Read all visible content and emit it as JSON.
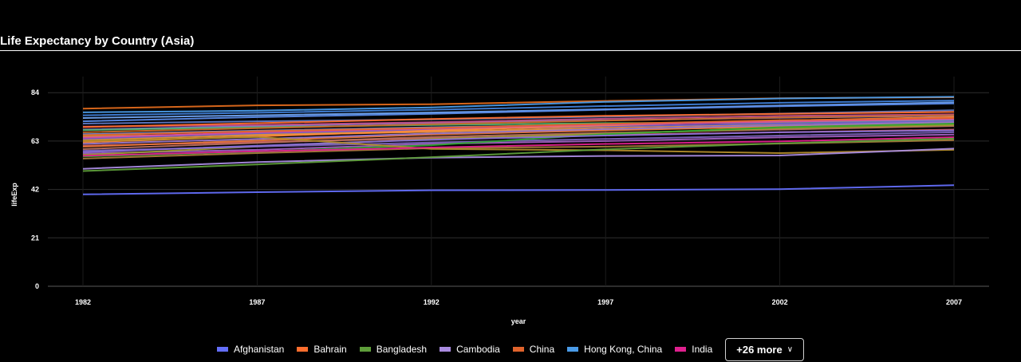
{
  "chart_data": {
    "type": "line",
    "title": "Life Expectancy by Country (Asia)",
    "xlabel": "year",
    "ylabel": "lifeExp",
    "x": [
      1982,
      1987,
      1992,
      1997,
      2002,
      2007
    ],
    "x_ticks": [
      "1982",
      "1987",
      "1992",
      "1997",
      "2002",
      "2007"
    ],
    "y_ticks": [
      "0",
      "21",
      "42",
      "63",
      "84"
    ],
    "ylim": [
      0,
      91
    ],
    "grid": true,
    "legend_position": "bottom",
    "legend_more_label": "+26 more",
    "series": [
      {
        "name": "Afghanistan",
        "color": "#636efa",
        "values": [
          39.85,
          40.82,
          41.67,
          41.76,
          42.13,
          43.83
        ]
      },
      {
        "name": "Bahrain",
        "color": "#ff6e2e",
        "values": [
          69.05,
          70.75,
          72.6,
          73.93,
          74.8,
          75.64
        ]
      },
      {
        "name": "Bangladesh",
        "color": "#5e9e3a",
        "values": [
          50.01,
          52.82,
          56.02,
          59.41,
          62.01,
          64.06
        ]
      },
      {
        "name": "Cambodia",
        "color": "#a98be0",
        "values": [
          50.96,
          53.91,
          55.8,
          56.53,
          56.75,
          59.72
        ]
      },
      {
        "name": "China",
        "color": "#e0632c",
        "values": [
          65.53,
          67.27,
          68.69,
          70.43,
          72.03,
          72.96
        ]
      },
      {
        "name": "Hong Kong, China",
        "color": "#4a9be8",
        "values": [
          75.45,
          76.2,
          77.6,
          80.0,
          81.5,
          82.21
        ]
      },
      {
        "name": "India",
        "color": "#e0208e",
        "values": [
          56.6,
          58.55,
          60.22,
          61.77,
          62.88,
          64.7
        ]
      },
      {
        "name": "",
        "color": "#e06a1c",
        "values": [
          77.1,
          78.5,
          79.0,
          80.4,
          81.6,
          82.0
        ]
      },
      {
        "name": "",
        "color": "#3f7fd8",
        "values": [
          74.2,
          75.3,
          76.6,
          78.2,
          79.6,
          80.6
        ]
      },
      {
        "name": "",
        "color": "#5a8ae6",
        "values": [
          71.6,
          73.4,
          74.8,
          76.6,
          78.1,
          79.3
        ]
      },
      {
        "name": "",
        "color": "#6fa3f0",
        "values": [
          73.0,
          74.2,
          75.4,
          76.8,
          78.4,
          79.8
        ]
      },
      {
        "name": "",
        "color": "#c86a2a",
        "values": [
          66.8,
          68.6,
          70.3,
          71.9,
          73.2,
          74.2
        ]
      },
      {
        "name": "",
        "color": "#d94fa0",
        "values": [
          64.5,
          66.8,
          68.4,
          70.1,
          71.4,
          72.6
        ]
      },
      {
        "name": "",
        "color": "#b08a2a",
        "values": [
          63.0,
          64.8,
          59.6,
          59.0,
          57.8,
          59.2
        ]
      },
      {
        "name": "",
        "color": "#8a6fd8",
        "values": [
          58.2,
          61.0,
          63.6,
          65.4,
          66.8,
          67.6
        ]
      },
      {
        "name": "",
        "color": "#2fa52f",
        "values": [
          56.3,
          58.4,
          61.2,
          66.0,
          69.0,
          70.6
        ]
      },
      {
        "name": "",
        "color": "#9a78c8",
        "values": [
          61.8,
          63.9,
          66.3,
          68.2,
          69.8,
          71.2
        ]
      },
      {
        "name": "",
        "color": "#e8773a",
        "values": [
          60.6,
          63.2,
          65.8,
          67.6,
          69.3,
          70.9
        ]
      },
      {
        "name": "",
        "color": "#7a62b8",
        "values": [
          58.8,
          60.6,
          62.4,
          63.9,
          65.4,
          66.8
        ]
      },
      {
        "name": "",
        "color": "#a67a3a",
        "values": [
          55.4,
          57.8,
          59.9,
          60.6,
          61.9,
          63.4
        ]
      },
      {
        "name": "",
        "color": "#7b8fd0",
        "values": [
          66.0,
          67.5,
          69.0,
          70.2,
          71.5,
          72.3
        ]
      },
      {
        "name": "",
        "color": "#c04f88",
        "values": [
          69.3,
          70.0,
          71.2,
          72.7,
          73.9,
          74.6
        ]
      },
      {
        "name": "",
        "color": "#ff8a3a",
        "values": [
          62.5,
          65.0,
          67.6,
          69.8,
          71.9,
          73.4
        ]
      },
      {
        "name": "",
        "color": "#9a9a30",
        "values": [
          57.0,
          60.6,
          63.9,
          66.2,
          68.5,
          70.0
        ]
      },
      {
        "name": "",
        "color": "#6e5ec8",
        "values": [
          64.0,
          66.4,
          68.0,
          69.4,
          70.6,
          71.6
        ]
      },
      {
        "name": "",
        "color": "#b87060",
        "values": [
          59.5,
          62.2,
          64.8,
          66.6,
          68.0,
          69.5
        ]
      },
      {
        "name": "",
        "color": "#4fb06e",
        "values": [
          67.8,
          69.0,
          70.0,
          70.8,
          71.0,
          71.8
        ]
      },
      {
        "name": "",
        "color": "#cf5c5c",
        "values": [
          61.0,
          62.6,
          64.2,
          65.7,
          66.8,
          68.0
        ]
      },
      {
        "name": "",
        "color": "#8d7ad6",
        "values": [
          68.0,
          69.5,
          70.9,
          72.0,
          73.1,
          74.0
        ]
      },
      {
        "name": "",
        "color": "#e49040",
        "values": [
          63.6,
          65.6,
          67.0,
          68.9,
          70.4,
          71.8
        ]
      },
      {
        "name": "",
        "color": "#5d78c4",
        "values": [
          70.6,
          71.6,
          72.4,
          73.6,
          74.9,
          76.4
        ]
      },
      {
        "name": "",
        "color": "#d6a23a",
        "values": [
          65.1,
          66.0,
          67.4,
          68.0,
          69.2,
          70.4
        ]
      },
      {
        "name": "",
        "color": "#a05fc0",
        "values": [
          57.6,
          59.2,
          61.8,
          63.0,
          64.6,
          65.8
        ]
      }
    ]
  }
}
